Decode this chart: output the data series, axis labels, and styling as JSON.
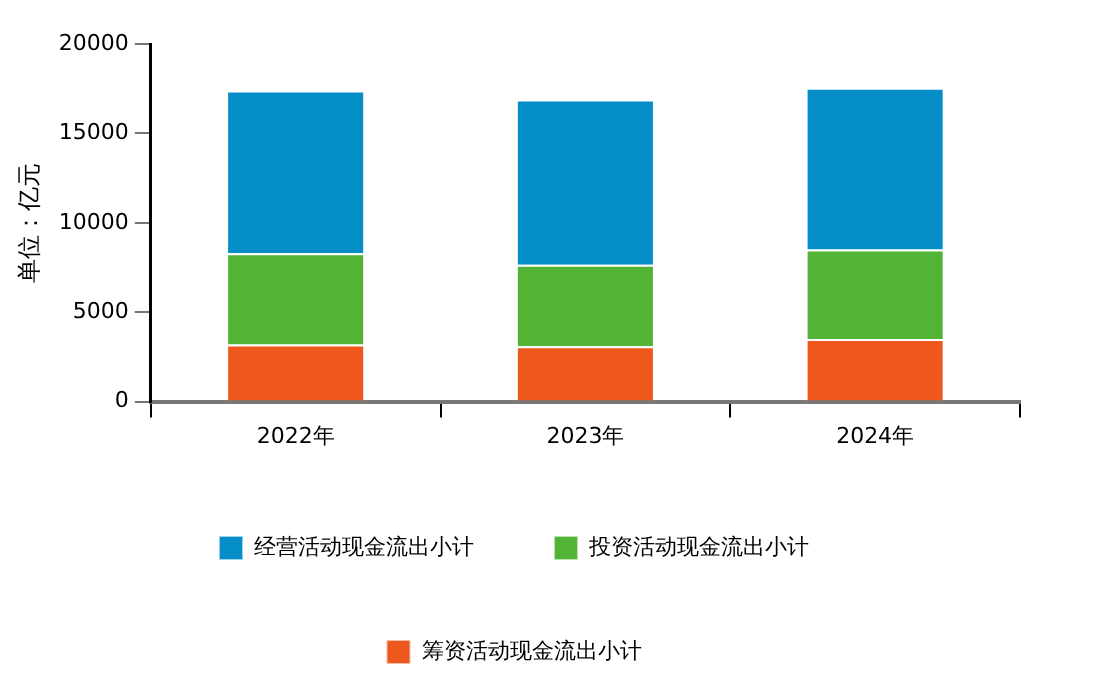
{
  "chart_data": {
    "type": "bar",
    "stacked": true,
    "ylabel": "单位：亿元",
    "categories": [
      "2022年",
      "2023年",
      "2024年"
    ],
    "series": [
      {
        "name": "筹资活动现金流出小计",
        "color": "#ee581d",
        "values": [
          3200,
          3100,
          3500
        ]
      },
      {
        "name": "投资活动现金流出小计",
        "color": "#52b335",
        "values": [
          5100,
          4550,
          5000
        ]
      },
      {
        "name": "经营活动现金流出小计",
        "color": "#058dc7",
        "values": [
          9100,
          9250,
          9050
        ]
      }
    ],
    "ylim": [
      0,
      20000
    ],
    "yticks": [
      0,
      5000,
      10000,
      15000,
      20000
    ],
    "grid": false,
    "legend": "bottom"
  }
}
